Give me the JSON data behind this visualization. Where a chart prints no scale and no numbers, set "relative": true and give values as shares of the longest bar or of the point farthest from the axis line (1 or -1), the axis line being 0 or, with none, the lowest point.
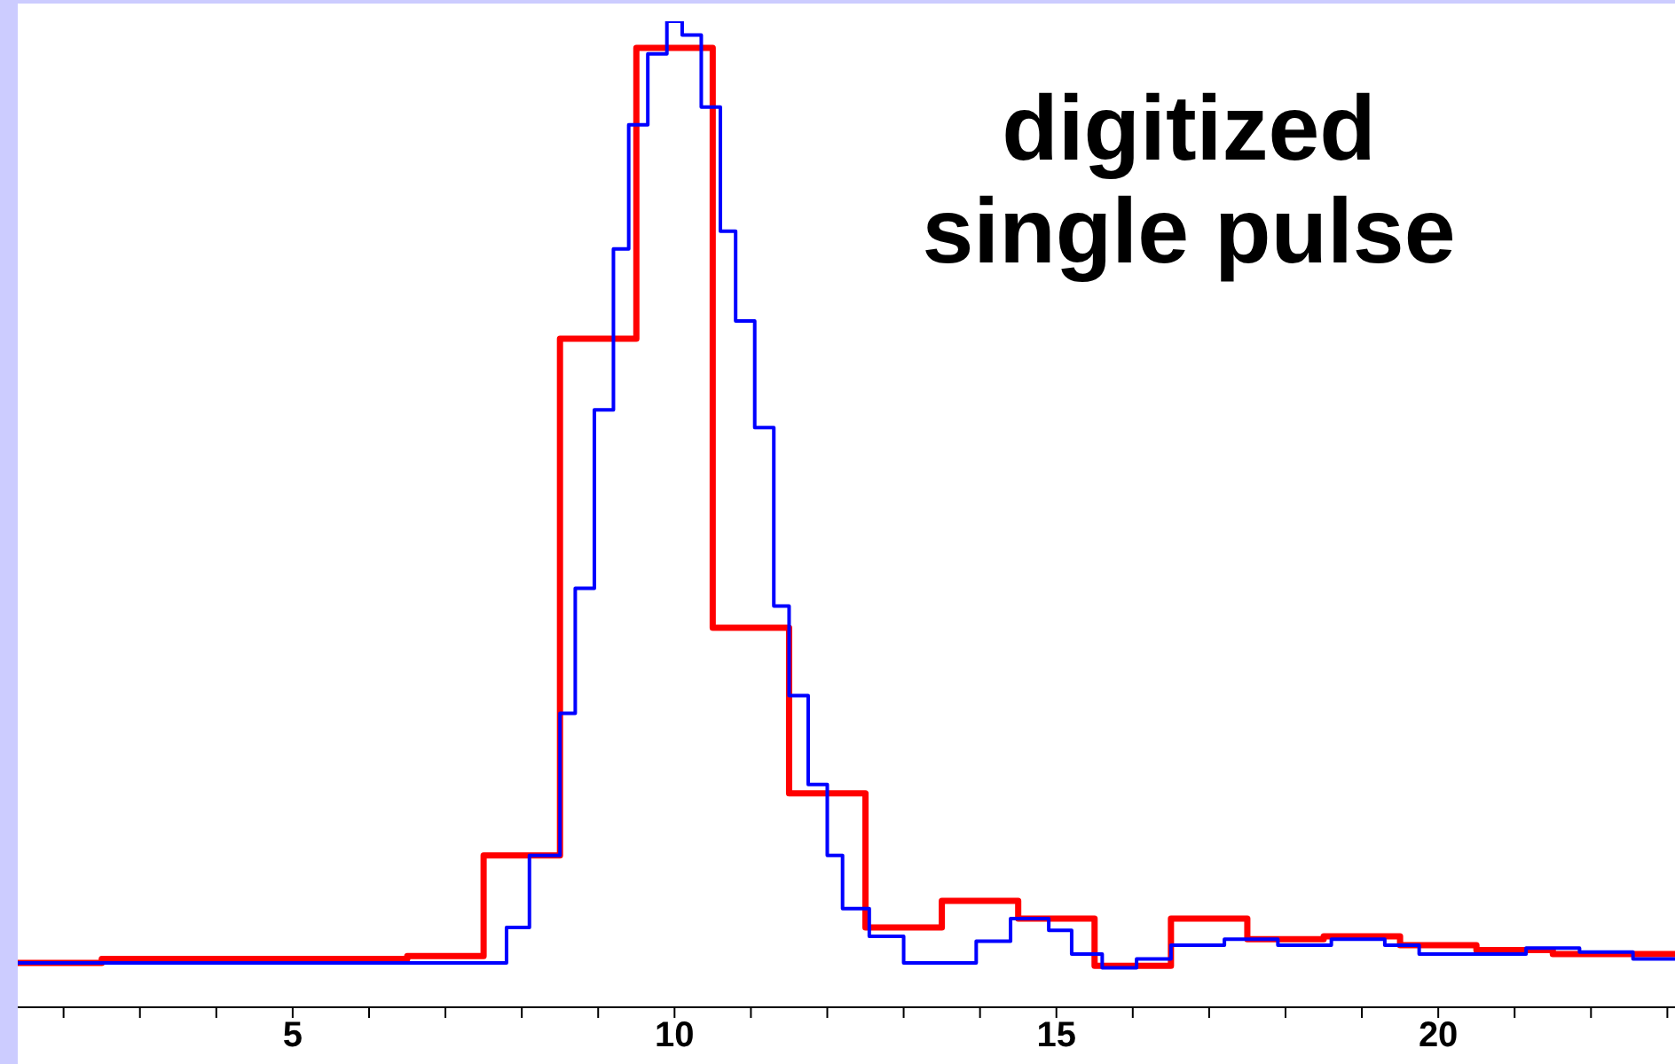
{
  "chart_data": {
    "type": "step",
    "title": "digitized single pulse",
    "relative": true,
    "xlim": [
      1.4,
      23.1
    ],
    "xticks": [
      {
        "value": 2,
        "label": null
      },
      {
        "value": 3,
        "label": null
      },
      {
        "value": 4,
        "label": null
      },
      5,
      {
        "value": 6,
        "label": null
      },
      {
        "value": 7,
        "label": null
      },
      {
        "value": 8,
        "label": null
      },
      {
        "value": 9,
        "label": null
      },
      10,
      {
        "value": 11,
        "label": null
      },
      {
        "value": 12,
        "label": null
      },
      {
        "value": 13,
        "label": null
      },
      {
        "value": 14,
        "label": null
      },
      15,
      {
        "value": 16,
        "label": null
      },
      {
        "value": 17,
        "label": null
      },
      {
        "value": 18,
        "label": null
      },
      {
        "value": 19,
        "label": null
      },
      20,
      {
        "value": 21,
        "label": null
      },
      {
        "value": 22,
        "label": null
      },
      {
        "value": 23,
        "label": null
      }
    ],
    "grid": false,
    "legend": false,
    "series": [
      {
        "color": "#ff0000",
        "x": [
          1.4,
          2.5,
          3.5,
          4.5,
          5.5,
          6.5,
          7.5,
          8.5,
          9.5,
          10.5,
          11.5,
          12.5,
          13.5,
          14.5,
          15.5,
          16.5,
          17.5,
          18.5,
          19.5,
          20.5,
          21.5,
          22.5,
          23.1
        ],
        "values": [
          0.045,
          0.049,
          0.049,
          0.049,
          0.049,
          0.052,
          0.154,
          0.678,
          0.973,
          0.385,
          0.217,
          0.081,
          0.108,
          0.09,
          0.042,
          0.09,
          0.069,
          0.072,
          0.063,
          0.058,
          0.054,
          0.054,
          0.054
        ]
      },
      {
        "color": "#0000ff",
        "x": [
          1.4,
          7.2,
          7.8,
          8.1,
          8.5,
          8.7,
          8.95,
          9.2,
          9.4,
          9.65,
          9.9,
          10.1,
          10.35,
          10.6,
          10.8,
          11.05,
          11.3,
          11.5,
          11.75,
          12.0,
          12.2,
          12.55,
          13.0,
          13.5,
          13.95,
          14.4,
          14.9,
          15.2,
          15.6,
          16.05,
          16.5,
          17.2,
          17.9,
          18.6,
          19.3,
          19.75,
          20.45,
          21.15,
          21.85,
          22.55,
          23.1
        ],
        "values": [
          0.045,
          0.045,
          0.081,
          0.154,
          0.298,
          0.425,
          0.606,
          0.769,
          0.895,
          0.967,
          1.0,
          0.986,
          0.913,
          0.787,
          0.696,
          0.588,
          0.407,
          0.316,
          0.226,
          0.154,
          0.1,
          0.072,
          0.045,
          0.045,
          0.067,
          0.09,
          0.078,
          0.054,
          0.04,
          0.049,
          0.063,
          0.069,
          0.063,
          0.069,
          0.063,
          0.054,
          0.054,
          0.06,
          0.056,
          0.049,
          0.049
        ]
      }
    ]
  }
}
